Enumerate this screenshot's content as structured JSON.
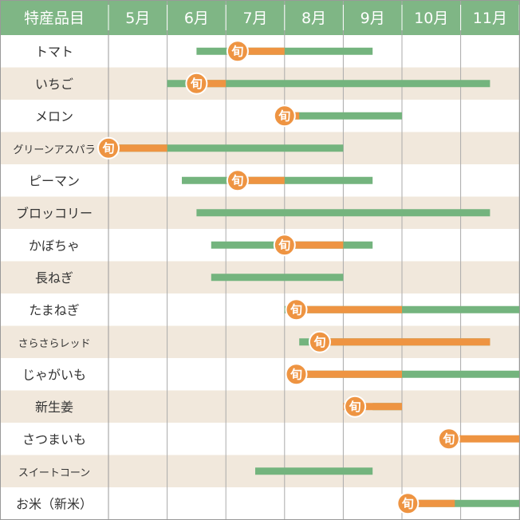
{
  "chart_data": {
    "type": "bar",
    "colors": {
      "header_bg": "#7fb685",
      "row_odd": "#ffffff",
      "row_even": "#f1e8dc",
      "grid": "#999999",
      "available_bar": "#74b47e",
      "peak_bar": "#ee9442"
    },
    "header": {
      "label": "特産品目",
      "months": [
        "5月",
        "6月",
        "7月",
        "8月",
        "9月",
        "10月",
        "11月"
      ]
    },
    "peak_marker": "旬",
    "rows": [
      {
        "name": "トマト",
        "available": [
          6.5,
          9.5
        ],
        "peak": [
          7.2,
          8.0
        ],
        "badge": 7.2
      },
      {
        "name": "いちご",
        "available": [
          6.0,
          11.5
        ],
        "peak": [
          6.5,
          7.0
        ],
        "badge": 6.5
      },
      {
        "name": "メロン",
        "available": [
          8.0,
          10.0
        ],
        "peak": [
          8.0,
          8.25
        ],
        "badge": 8.0
      },
      {
        "name": "グリーンアスパラ",
        "available": [
          5.0,
          9.0
        ],
        "peak": [
          5.0,
          6.0
        ],
        "badge": 5.0
      },
      {
        "name": "ピーマン",
        "available": [
          6.25,
          9.5
        ],
        "peak": [
          7.2,
          8.0
        ],
        "badge": 7.2
      },
      {
        "name": "ブロッコリー",
        "available": [
          6.5,
          11.5
        ],
        "peak": null,
        "badge": null
      },
      {
        "name": "かぼちゃ",
        "available": [
          6.75,
          9.5
        ],
        "peak": [
          8.0,
          9.0
        ],
        "badge": 8.0
      },
      {
        "name": "長ねぎ",
        "available": [
          6.75,
          9.0
        ],
        "peak": null,
        "badge": null
      },
      {
        "name": "たまねぎ",
        "available": [
          8.0,
          12.0
        ],
        "peak": [
          8.2,
          10.0
        ],
        "badge": 8.2
      },
      {
        "name": "さらさらレッド",
        "available": [
          8.25,
          11.5
        ],
        "peak": [
          8.6,
          11.5
        ],
        "badge": 8.6
      },
      {
        "name": "じゃがいも",
        "available": [
          8.25,
          12.0
        ],
        "peak": [
          8.2,
          10.0
        ],
        "badge": 8.2
      },
      {
        "name": "新生姜",
        "available": [
          9.5,
          10.0
        ],
        "peak": [
          9.0,
          10.0
        ],
        "badge": 9.2
      },
      {
        "name": "さつまいも",
        "available": null,
        "peak": [
          10.8,
          12.0
        ],
        "badge": 10.8
      },
      {
        "name": "スイートコーン",
        "available": [
          7.5,
          9.5
        ],
        "peak": null,
        "badge": null
      },
      {
        "name": "お米（新米）",
        "available": [
          10.0,
          12.0
        ],
        "peak": [
          10.0,
          10.9
        ],
        "badge": 10.1
      }
    ]
  }
}
